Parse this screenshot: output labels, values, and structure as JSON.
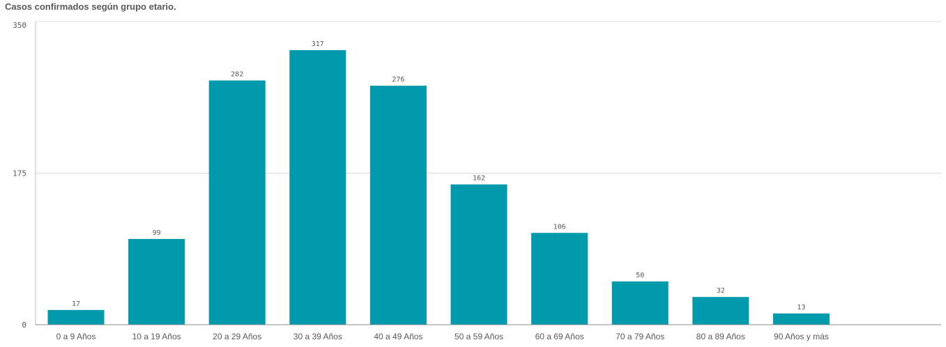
{
  "chart_data": {
    "type": "bar",
    "title": "Casos confirmados según grupo etario.",
    "categories": [
      "0 a 9 Años",
      "10 a 19 Años",
      "20 a 29 Años",
      "30 a 39 Años",
      "40 a 49 Años",
      "50 a 59 Años",
      "60 a 69 Años",
      "70 a 79 Años",
      "80 a 89 Años",
      "90 Años y más"
    ],
    "values": [
      17,
      99,
      282,
      317,
      276,
      162,
      106,
      50,
      32,
      13
    ],
    "xlabel": "",
    "ylabel": "",
    "ylim": [
      0,
      350
    ],
    "yticks": [
      0,
      175,
      350
    ],
    "grid": true,
    "bar_color": "#009aad",
    "show_data_labels": true
  }
}
